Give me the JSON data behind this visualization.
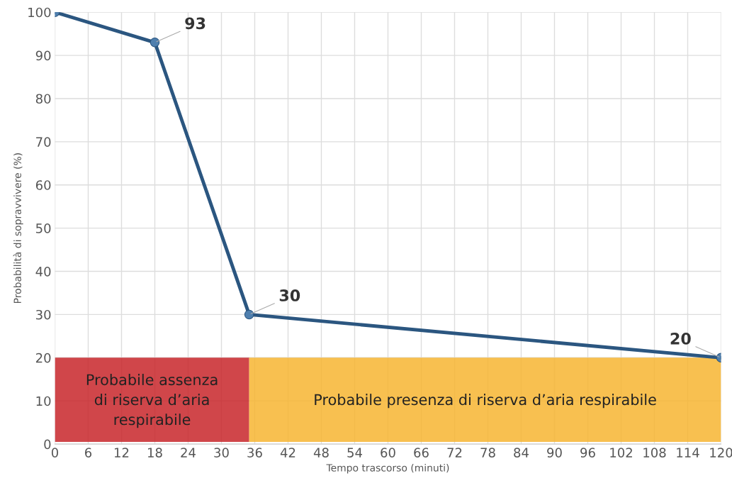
{
  "chart_data": {
    "type": "line",
    "xlabel": "Tempo trascorso (minuti)",
    "ylabel": "Probabilità di sopravvivere (%)",
    "x": [
      0,
      18,
      35,
      120
    ],
    "series": [
      {
        "color": "#2b5680",
        "values": [
          100,
          93,
          30,
          20
        ],
        "value_labels": [
          null,
          "93",
          "30",
          "20"
        ]
      }
    ],
    "xlim": [
      0,
      120
    ],
    "xticks": [
      0,
      6,
      12,
      18,
      24,
      30,
      36,
      42,
      48,
      54,
      60,
      66,
      72,
      78,
      84,
      90,
      96,
      102,
      108,
      114,
      120
    ],
    "ylim": [
      0,
      100
    ],
    "yticks": [
      0,
      10,
      20,
      30,
      40,
      50,
      60,
      70,
      80,
      90,
      100
    ],
    "grid": true,
    "marker": "circle",
    "line_style": "solid",
    "bands": [
      {
        "axis": "x",
        "from": 0,
        "to": 35,
        "label": "Probabile assenza\ndi riserva d’aria\nrespirabile",
        "color": "#c8262a"
      },
      {
        "axis": "x",
        "from": 35,
        "to": 120,
        "label": "Probabile presenza di riserva d’aria respirabile",
        "color": "#f7b531"
      }
    ]
  }
}
